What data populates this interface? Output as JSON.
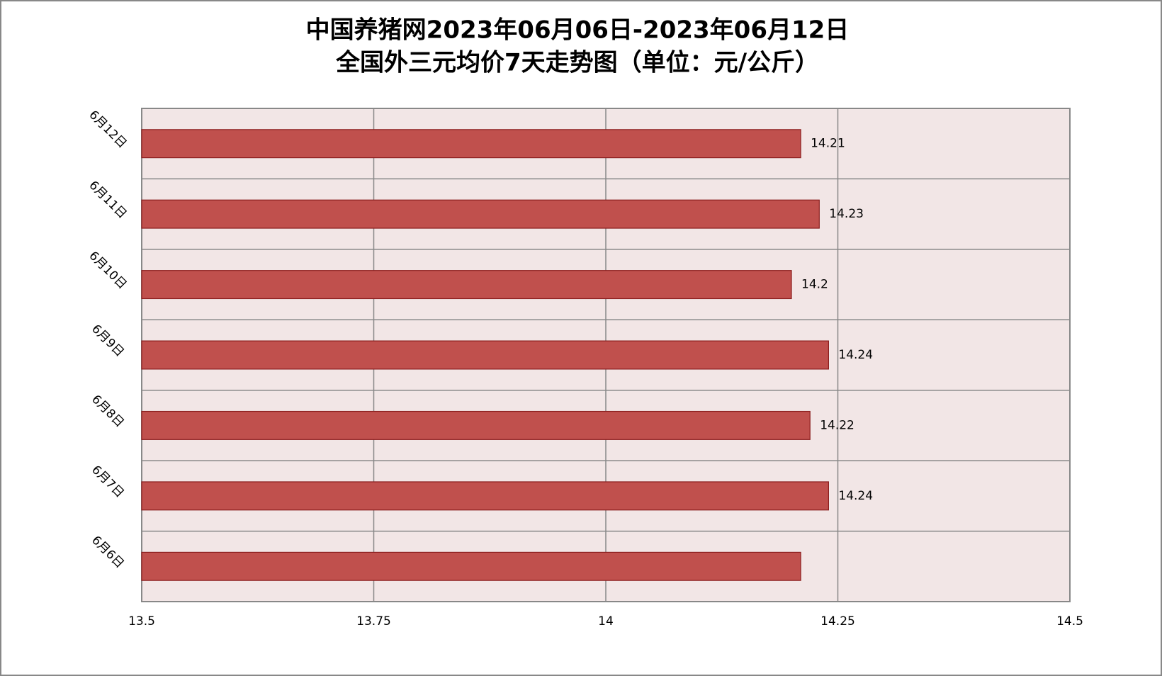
{
  "chart_data": {
    "type": "bar",
    "orientation": "horizontal",
    "title": "中国养猪网2023年06月06日-2023年06月12日",
    "subtitle": "全国外三元均价7天走势图（单位：元/公斤）",
    "categories": [
      "6月6日",
      "6月7日",
      "6月8日",
      "6月9日",
      "6月10日",
      "6月11日",
      "6月12日"
    ],
    "values": [
      14.21,
      14.24,
      14.22,
      14.24,
      14.2,
      14.23,
      14.21
    ],
    "value_labels": [
      null,
      "14.24",
      "14.22",
      "14.24",
      "14.2",
      "14.23",
      "14.21"
    ],
    "color": "#c0504d",
    "xlim": [
      13.5,
      14.5
    ],
    "xticks": [
      13.5,
      13.75,
      14,
      14.25,
      14.5
    ],
    "grid": true
  }
}
